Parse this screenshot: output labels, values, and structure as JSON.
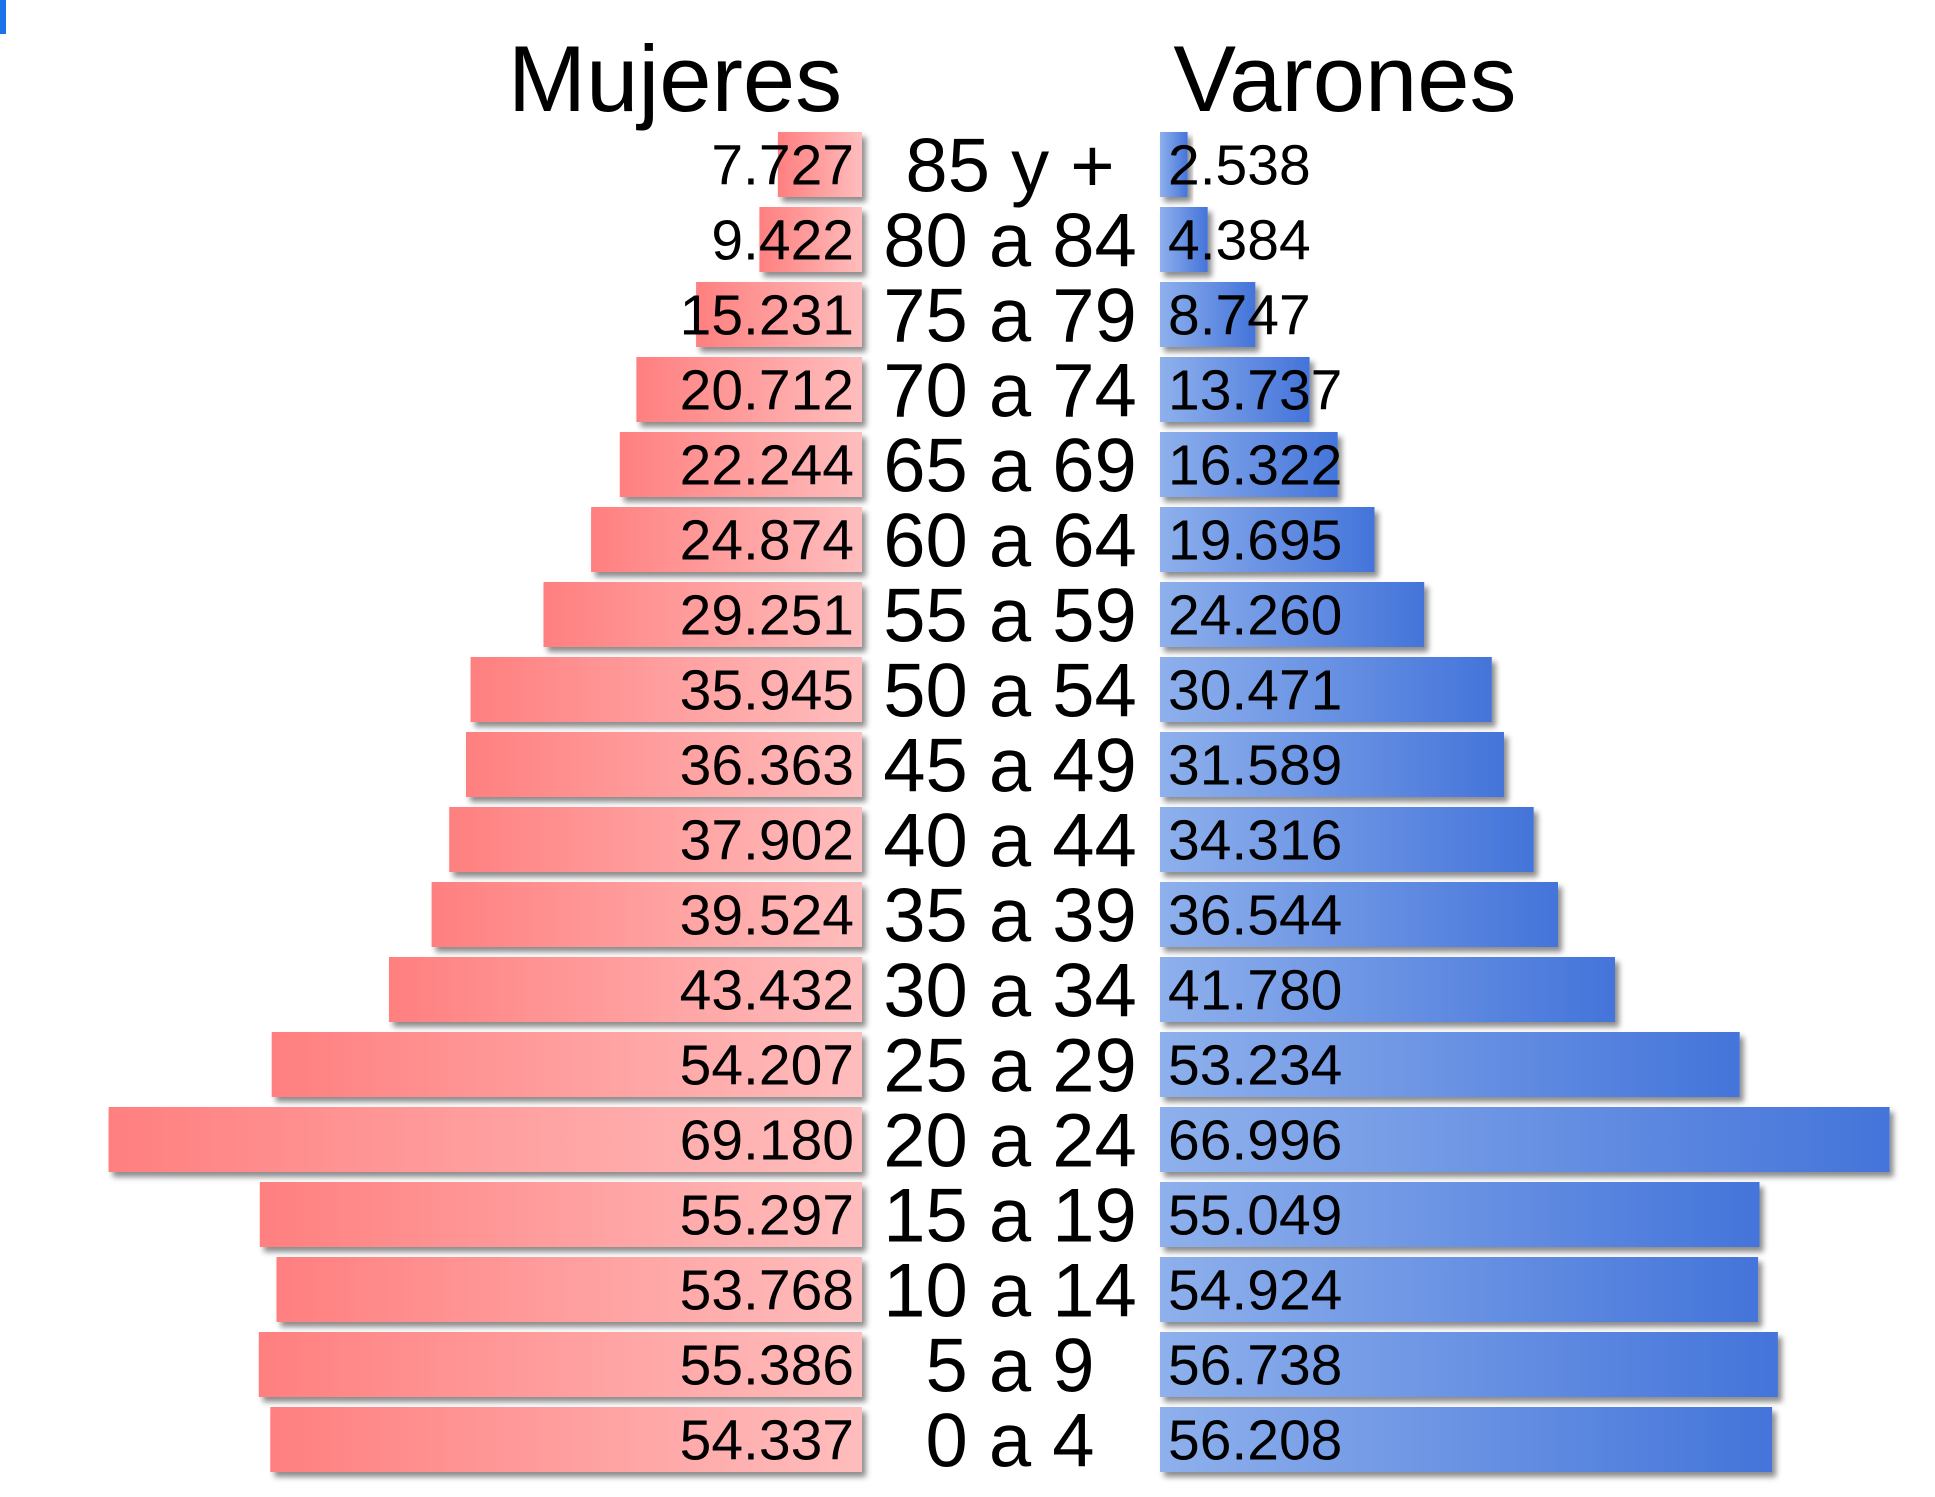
{
  "chart_data": {
    "type": "bar",
    "orientation": "horizontal-pyramid",
    "title": "",
    "categories": [
      "85 y +",
      "80 a 84",
      "75 a 79",
      "70 a 74",
      "65 a 69",
      "60 a 64",
      "55 a 59",
      "50 a 54",
      "45 a 49",
      "40 a 44",
      "35 a 39",
      "30 a 34",
      "25 a 29",
      "20 a 24",
      "15 a 19",
      "10 a 14",
      "5 a 9",
      "0 a 4"
    ],
    "series": [
      {
        "name": "Mujeres",
        "side": "left",
        "color": "#ff7f7f",
        "values": [
          7727,
          9422,
          15231,
          20712,
          22244,
          24874,
          29251,
          35945,
          36363,
          37902,
          39524,
          43432,
          54207,
          69180,
          55297,
          53768,
          55386,
          54337
        ],
        "labels": [
          "7.727",
          "9.422",
          "15.231",
          "20.712",
          "22.244",
          "24.874",
          "29.251",
          "35.945",
          "36.363",
          "37.902",
          "39.524",
          "43.432",
          "54.207",
          "69.180",
          "55.297",
          "53.768",
          "55.386",
          "54.337"
        ]
      },
      {
        "name": "Varones",
        "side": "right",
        "color": "#4a7fdc",
        "values": [
          2538,
          4384,
          8747,
          13737,
          16322,
          19695,
          24260,
          30471,
          31589,
          34316,
          36544,
          41780,
          53234,
          66996,
          55049,
          54924,
          56738,
          56208
        ],
        "labels": [
          "2.538",
          "4.384",
          "8.747",
          "13.737",
          "16.322",
          "19.695",
          "24.260",
          "30.471",
          "31.589",
          "34.316",
          "36.544",
          "41.780",
          "53.234",
          "66.996",
          "55.049",
          "54.924",
          "56.738",
          "56.208"
        ]
      }
    ],
    "grid": false,
    "legend": "none"
  }
}
